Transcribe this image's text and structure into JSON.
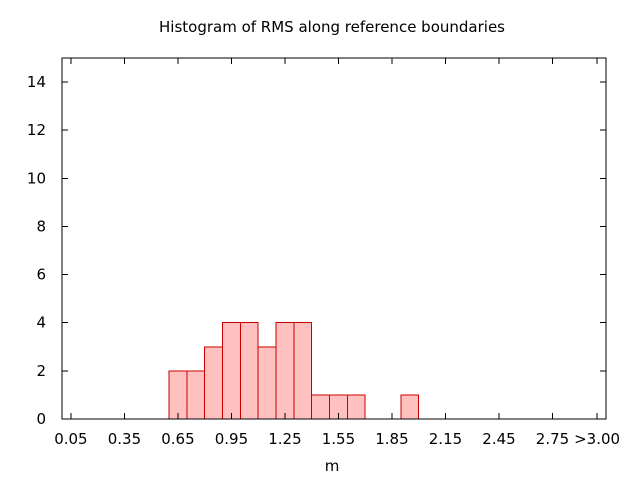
{
  "chart_data": {
    "type": "bar",
    "title": "Histogram of RMS along reference boundaries",
    "xlabel": "m",
    "ylabel": "",
    "x_ticks": [
      "0.05",
      "0.35",
      "0.65",
      "0.95",
      "1.25",
      "1.55",
      "1.85",
      "2.15",
      "2.45",
      "2.75",
      ">3.00"
    ],
    "y_ticks": [
      "0",
      "2",
      "4",
      "6",
      "8",
      "10",
      "12",
      "14"
    ],
    "ylim": [
      0,
      15
    ],
    "xlim": [
      0.0,
      3.05
    ],
    "bin_width": 0.1,
    "bins": [
      {
        "left": 0.6,
        "count": 2
      },
      {
        "left": 0.7,
        "count": 2
      },
      {
        "left": 0.8,
        "count": 3
      },
      {
        "left": 0.9,
        "count": 4
      },
      {
        "left": 1.0,
        "count": 4
      },
      {
        "left": 1.1,
        "count": 3
      },
      {
        "left": 1.2,
        "count": 4
      },
      {
        "left": 1.3,
        "count": 4
      },
      {
        "left": 1.4,
        "count": 1
      },
      {
        "left": 1.5,
        "count": 1
      },
      {
        "left": 1.6,
        "count": 1
      },
      {
        "left": 1.9,
        "count": 1
      }
    ],
    "bar_fill": "#ffc0c0",
    "bar_stroke": "#cc0000",
    "grid": false,
    "legend": "none"
  }
}
